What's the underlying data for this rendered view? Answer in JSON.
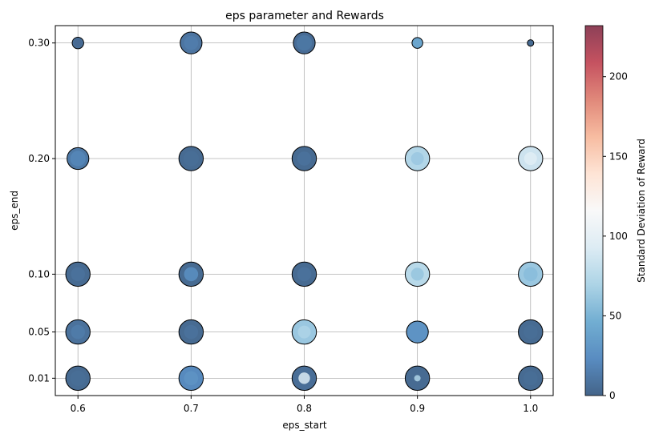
{
  "chart_data": {
    "type": "scatter",
    "title": "eps parameter and Rewards",
    "xlabel": "eps_start",
    "ylabel": "eps_end",
    "x_ticks": [
      "0.6",
      "0.7",
      "0.8",
      "0.9",
      "1.0"
    ],
    "y_ticks": [
      "0.30",
      "0.20",
      "0.10",
      "0.05",
      "0.01"
    ],
    "xlim": [
      0.58,
      1.02
    ],
    "ylim": [
      -0.005,
      0.315
    ],
    "grid": true,
    "colorbar": {
      "label": "Standard Deviation of Reward",
      "range": [
        0,
        232
      ],
      "ticks": [
        "0",
        "50",
        "100",
        "150",
        "200"
      ],
      "colormap": "RdBu_r",
      "alpha": 0.75
    },
    "points": [
      {
        "x": 0.6,
        "y": 0.3,
        "sd_std": 6,
        "size": 0.45,
        "inner": [
          {
            "std": 3,
            "size": 0.3
          }
        ]
      },
      {
        "x": 0.7,
        "y": 0.3,
        "sd_std": 10,
        "size": 0.85,
        "inner": [
          {
            "std": 15,
            "size": 0.55
          }
        ]
      },
      {
        "x": 0.8,
        "y": 0.3,
        "sd_std": 5,
        "size": 0.85,
        "inner": [
          {
            "std": 12,
            "size": 0.6
          }
        ]
      },
      {
        "x": 0.9,
        "y": 0.3,
        "sd_std": 40,
        "size": 0.42,
        "inner": []
      },
      {
        "x": 1.0,
        "y": 0.3,
        "sd_std": 4,
        "size": 0.25,
        "inner": []
      },
      {
        "x": 0.6,
        "y": 0.2,
        "sd_std": 12,
        "size": 0.85,
        "inner": [
          {
            "std": 20,
            "size": 0.6
          }
        ]
      },
      {
        "x": 0.7,
        "y": 0.2,
        "sd_std": 4,
        "size": 0.95,
        "inner": [
          {
            "std": 6,
            "size": 0.6
          }
        ]
      },
      {
        "x": 0.8,
        "y": 0.2,
        "sd_std": 4,
        "size": 0.95,
        "inner": [
          {
            "std": 8,
            "size": 0.55
          }
        ]
      },
      {
        "x": 0.9,
        "y": 0.2,
        "sd_std": 72,
        "size": 0.95,
        "inner": [
          {
            "std": 62,
            "size": 0.5
          }
        ]
      },
      {
        "x": 1.0,
        "y": 0.2,
        "sd_std": 85,
        "size": 0.95,
        "inner": [
          {
            "std": 95,
            "size": 0.5
          }
        ]
      },
      {
        "x": 0.6,
        "y": 0.1,
        "sd_std": 4,
        "size": 0.95,
        "inner": [
          {
            "std": 8,
            "size": 0.55
          }
        ]
      },
      {
        "x": 0.7,
        "y": 0.1,
        "sd_std": 4,
        "size": 0.95,
        "inner": [
          {
            "std": 25,
            "size": 0.55
          }
        ]
      },
      {
        "x": 0.8,
        "y": 0.1,
        "sd_std": 4,
        "size": 0.95,
        "inner": [
          {
            "std": 8,
            "size": 0.55
          }
        ]
      },
      {
        "x": 0.9,
        "y": 0.1,
        "sd_std": 75,
        "size": 0.95,
        "inner": [
          {
            "std": 60,
            "size": 0.5
          }
        ]
      },
      {
        "x": 1.0,
        "y": 0.1,
        "sd_std": 62,
        "size": 0.95,
        "inner": [
          {
            "std": 55,
            "size": 0.55
          }
        ]
      },
      {
        "x": 0.6,
        "y": 0.05,
        "sd_std": 8,
        "size": 0.95,
        "inner": [
          {
            "std": 14,
            "size": 0.55
          }
        ]
      },
      {
        "x": 0.7,
        "y": 0.05,
        "sd_std": 4,
        "size": 0.95,
        "inner": [
          {
            "std": 8,
            "size": 0.55
          }
        ]
      },
      {
        "x": 0.8,
        "y": 0.05,
        "sd_std": 62,
        "size": 0.95,
        "inner": [
          {
            "std": 70,
            "size": 0.5
          }
        ]
      },
      {
        "x": 0.9,
        "y": 0.05,
        "sd_std": 28,
        "size": 0.85,
        "inner": []
      },
      {
        "x": 1.0,
        "y": 0.05,
        "sd_std": 4,
        "size": 0.95,
        "inner": [
          {
            "std": 6,
            "size": 0.55
          }
        ]
      },
      {
        "x": 0.6,
        "y": 0.01,
        "sd_std": 4,
        "size": 0.95,
        "inner": [
          {
            "std": 6,
            "size": 0.6
          }
        ]
      },
      {
        "x": 0.7,
        "y": 0.01,
        "sd_std": 22,
        "size": 0.95,
        "inner": [
          {
            "std": 28,
            "size": 0.55
          }
        ]
      },
      {
        "x": 0.8,
        "y": 0.01,
        "sd_std": 6,
        "size": 0.95,
        "inner": [
          {
            "std": 92,
            "size": 0.45
          }
        ]
      },
      {
        "x": 0.9,
        "y": 0.01,
        "sd_std": 4,
        "size": 0.95,
        "inner": [
          {
            "std": 70,
            "size": 0.25
          }
        ]
      },
      {
        "x": 1.0,
        "y": 0.01,
        "sd_std": 4,
        "size": 0.95,
        "inner": [
          {
            "std": 6,
            "size": 0.55
          }
        ]
      }
    ]
  }
}
